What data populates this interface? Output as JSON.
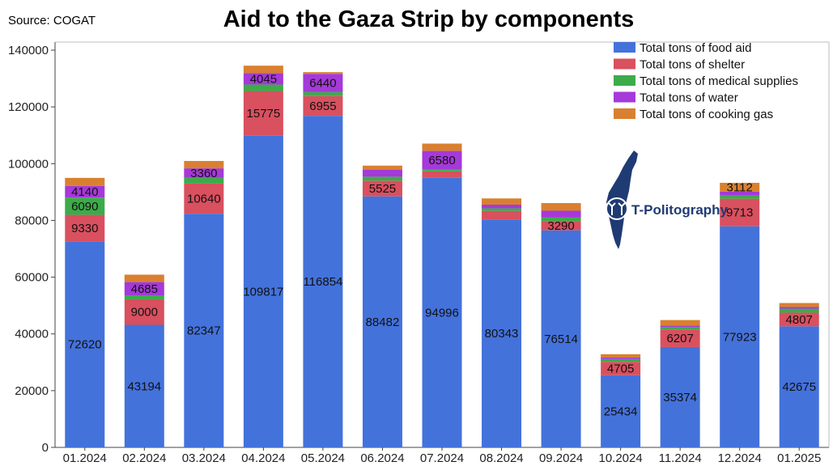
{
  "header": {
    "source": "Source: COGAT",
    "title": "Aid to the Gaza Strip by components"
  },
  "logo": {
    "text": "T-Politography",
    "icon": "israel-map-icon"
  },
  "chart_data": {
    "type": "bar",
    "stacked": true,
    "title": "Aid to the Gaza Strip by components",
    "xlabel": "",
    "ylabel": "",
    "ylim": [
      0,
      140000
    ],
    "yticks": [
      0,
      20000,
      40000,
      60000,
      80000,
      100000,
      120000,
      140000
    ],
    "grid": false,
    "legend_position": "top-right",
    "categories": [
      "01.2024",
      "02.2024",
      "03.2024",
      "04.2024",
      "05.2024",
      "06.2024",
      "07.2024",
      "08.2024",
      "09.2024",
      "10.2024",
      "11.2024",
      "12.2024",
      "01.2025"
    ],
    "series": [
      {
        "name": "Total tons of food aid",
        "color": "#4472db",
        "values": [
          72620,
          43194,
          82347,
          109817,
          116854,
          88482,
          94996,
          80343,
          76514,
          25434,
          35374,
          77923,
          42675
        ],
        "labels": [
          "72620",
          "43194",
          "82347",
          "109817",
          "116854",
          "88482",
          "94996",
          "80343",
          "76514",
          "25434",
          "35374",
          "77923",
          "42675"
        ]
      },
      {
        "name": "Total tons of shelter",
        "color": "#d9505f",
        "values": [
          9330,
          9000,
          10640,
          15775,
          6955,
          5525,
          2300,
          3000,
          3290,
          4705,
          6207,
          9713,
          4807
        ],
        "labels": [
          "9330",
          "9000",
          "10640",
          "15775",
          "6955",
          "5525",
          "",
          "",
          "3290",
          "4705",
          "6207",
          "9713",
          "4807"
        ]
      },
      {
        "name": "Total tons of medical supplies",
        "color": "#3dab4a",
        "values": [
          6090,
          1400,
          2000,
          2300,
          1400,
          1400,
          600,
          900,
          1200,
          1000,
          800,
          1200,
          1400
        ],
        "labels": [
          "6090",
          "",
          "",
          "",
          "",
          "",
          "",
          "",
          "",
          "",
          "",
          "",
          ""
        ]
      },
      {
        "name": "Total tons of water",
        "color": "#a539d9",
        "values": [
          4140,
          4685,
          3360,
          4045,
          6440,
          2500,
          6580,
          1300,
          2400,
          500,
          600,
          1300,
          600
        ],
        "labels": [
          "4140",
          "4685",
          "3360",
          "4045",
          "6440",
          "",
          "6580",
          "",
          "",
          "",
          "",
          "",
          ""
        ]
      },
      {
        "name": "Total tons of cooking gas",
        "color": "#d98030",
        "values": [
          2800,
          2600,
          2600,
          2600,
          600,
          1400,
          2600,
          2200,
          2700,
          1200,
          1900,
          3112,
          1400
        ],
        "labels": [
          "",
          "",
          "",
          "",
          "",
          "",
          "",
          "",
          "",
          "",
          "",
          "3112",
          ""
        ]
      }
    ]
  }
}
